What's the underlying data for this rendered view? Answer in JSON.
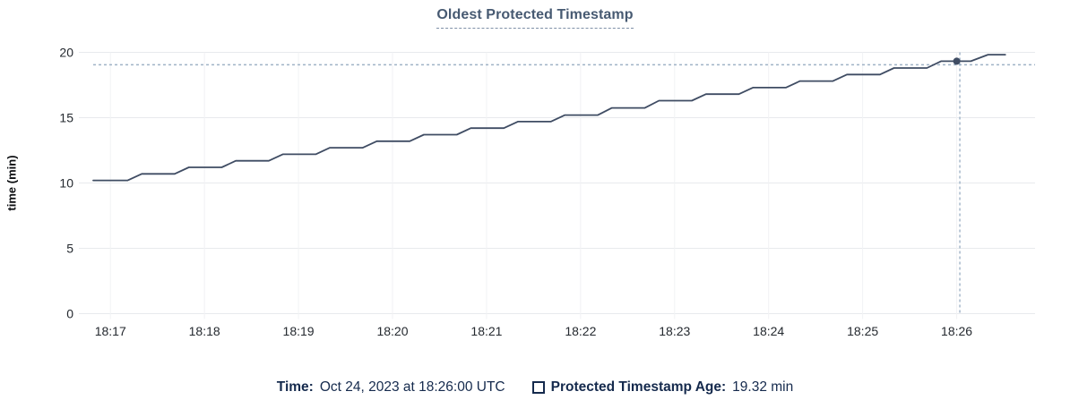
{
  "colors": {
    "series_line": "#3f4c63",
    "title_text": "#475a72",
    "legend_text": "#152a4d",
    "crosshair": "#9fb2c6",
    "tick_text": "#24292f",
    "h_gridline": "#e8eaed",
    "v_gridline": "#f1f2f4",
    "background": "#ffffff"
  },
  "tooltip": {
    "time_label": "Time:",
    "time_value": "Oct 24, 2023 at 18:26:00 UTC",
    "series_label": "Protected Timestamp Age:",
    "series_value": "19.32 min"
  },
  "chart_data": {
    "type": "line",
    "title": "Oldest Protected Timestamp",
    "xlabel": "",
    "ylabel": "time (min)",
    "ylim": [
      0,
      20
    ],
    "y_ticks": [
      0,
      5,
      10,
      15,
      20
    ],
    "x_unit": "seconds after 18:17:00 UTC",
    "xlim_seconds": [
      -19,
      590
    ],
    "x_ticks": [
      {
        "label": "18:17",
        "t": 0
      },
      {
        "label": "18:18",
        "t": 60
      },
      {
        "label": "18:19",
        "t": 120
      },
      {
        "label": "18:20",
        "t": 180
      },
      {
        "label": "18:21",
        "t": 240
      },
      {
        "label": "18:22",
        "t": 300
      },
      {
        "label": "18:23",
        "t": 360
      },
      {
        "label": "18:24",
        "t": 420
      },
      {
        "label": "18:25",
        "t": 480
      },
      {
        "label": "18:26",
        "t": 540
      }
    ],
    "grid": true,
    "legend_position": "bottom",
    "series": [
      {
        "name": "Protected Timestamp Age",
        "color": "#3f4c63",
        "points": [
          [
            -11,
            10.2
          ],
          [
            11,
            10.2
          ],
          [
            20,
            10.7
          ],
          [
            41,
            10.7
          ],
          [
            50,
            11.2
          ],
          [
            71,
            11.2
          ],
          [
            80,
            11.7
          ],
          [
            101,
            11.7
          ],
          [
            110,
            12.2
          ],
          [
            131,
            12.2
          ],
          [
            140,
            12.7
          ],
          [
            161,
            12.7
          ],
          [
            170,
            13.2
          ],
          [
            191,
            13.2
          ],
          [
            200,
            13.7
          ],
          [
            221,
            13.7
          ],
          [
            230,
            14.2
          ],
          [
            251,
            14.2
          ],
          [
            260,
            14.7
          ],
          [
            281,
            14.7
          ],
          [
            290,
            15.2
          ],
          [
            311,
            15.2
          ],
          [
            320,
            15.75
          ],
          [
            341,
            15.75
          ],
          [
            350,
            16.3
          ],
          [
            371,
            16.3
          ],
          [
            380,
            16.8
          ],
          [
            401,
            16.8
          ],
          [
            410,
            17.3
          ],
          [
            431,
            17.3
          ],
          [
            440,
            17.8
          ],
          [
            461,
            17.8
          ],
          [
            470,
            18.3
          ],
          [
            491,
            18.3
          ],
          [
            500,
            18.8
          ],
          [
            521,
            18.8
          ],
          [
            530,
            19.32
          ],
          [
            549,
            19.32
          ],
          [
            560,
            19.82
          ],
          [
            571,
            19.82
          ]
        ]
      }
    ],
    "hover": {
      "crosshair_t_seconds": 542,
      "crosshair_value_min": 19.05,
      "highlighted_point_t_seconds": 540,
      "highlighted_point_value_min": 19.32
    }
  }
}
